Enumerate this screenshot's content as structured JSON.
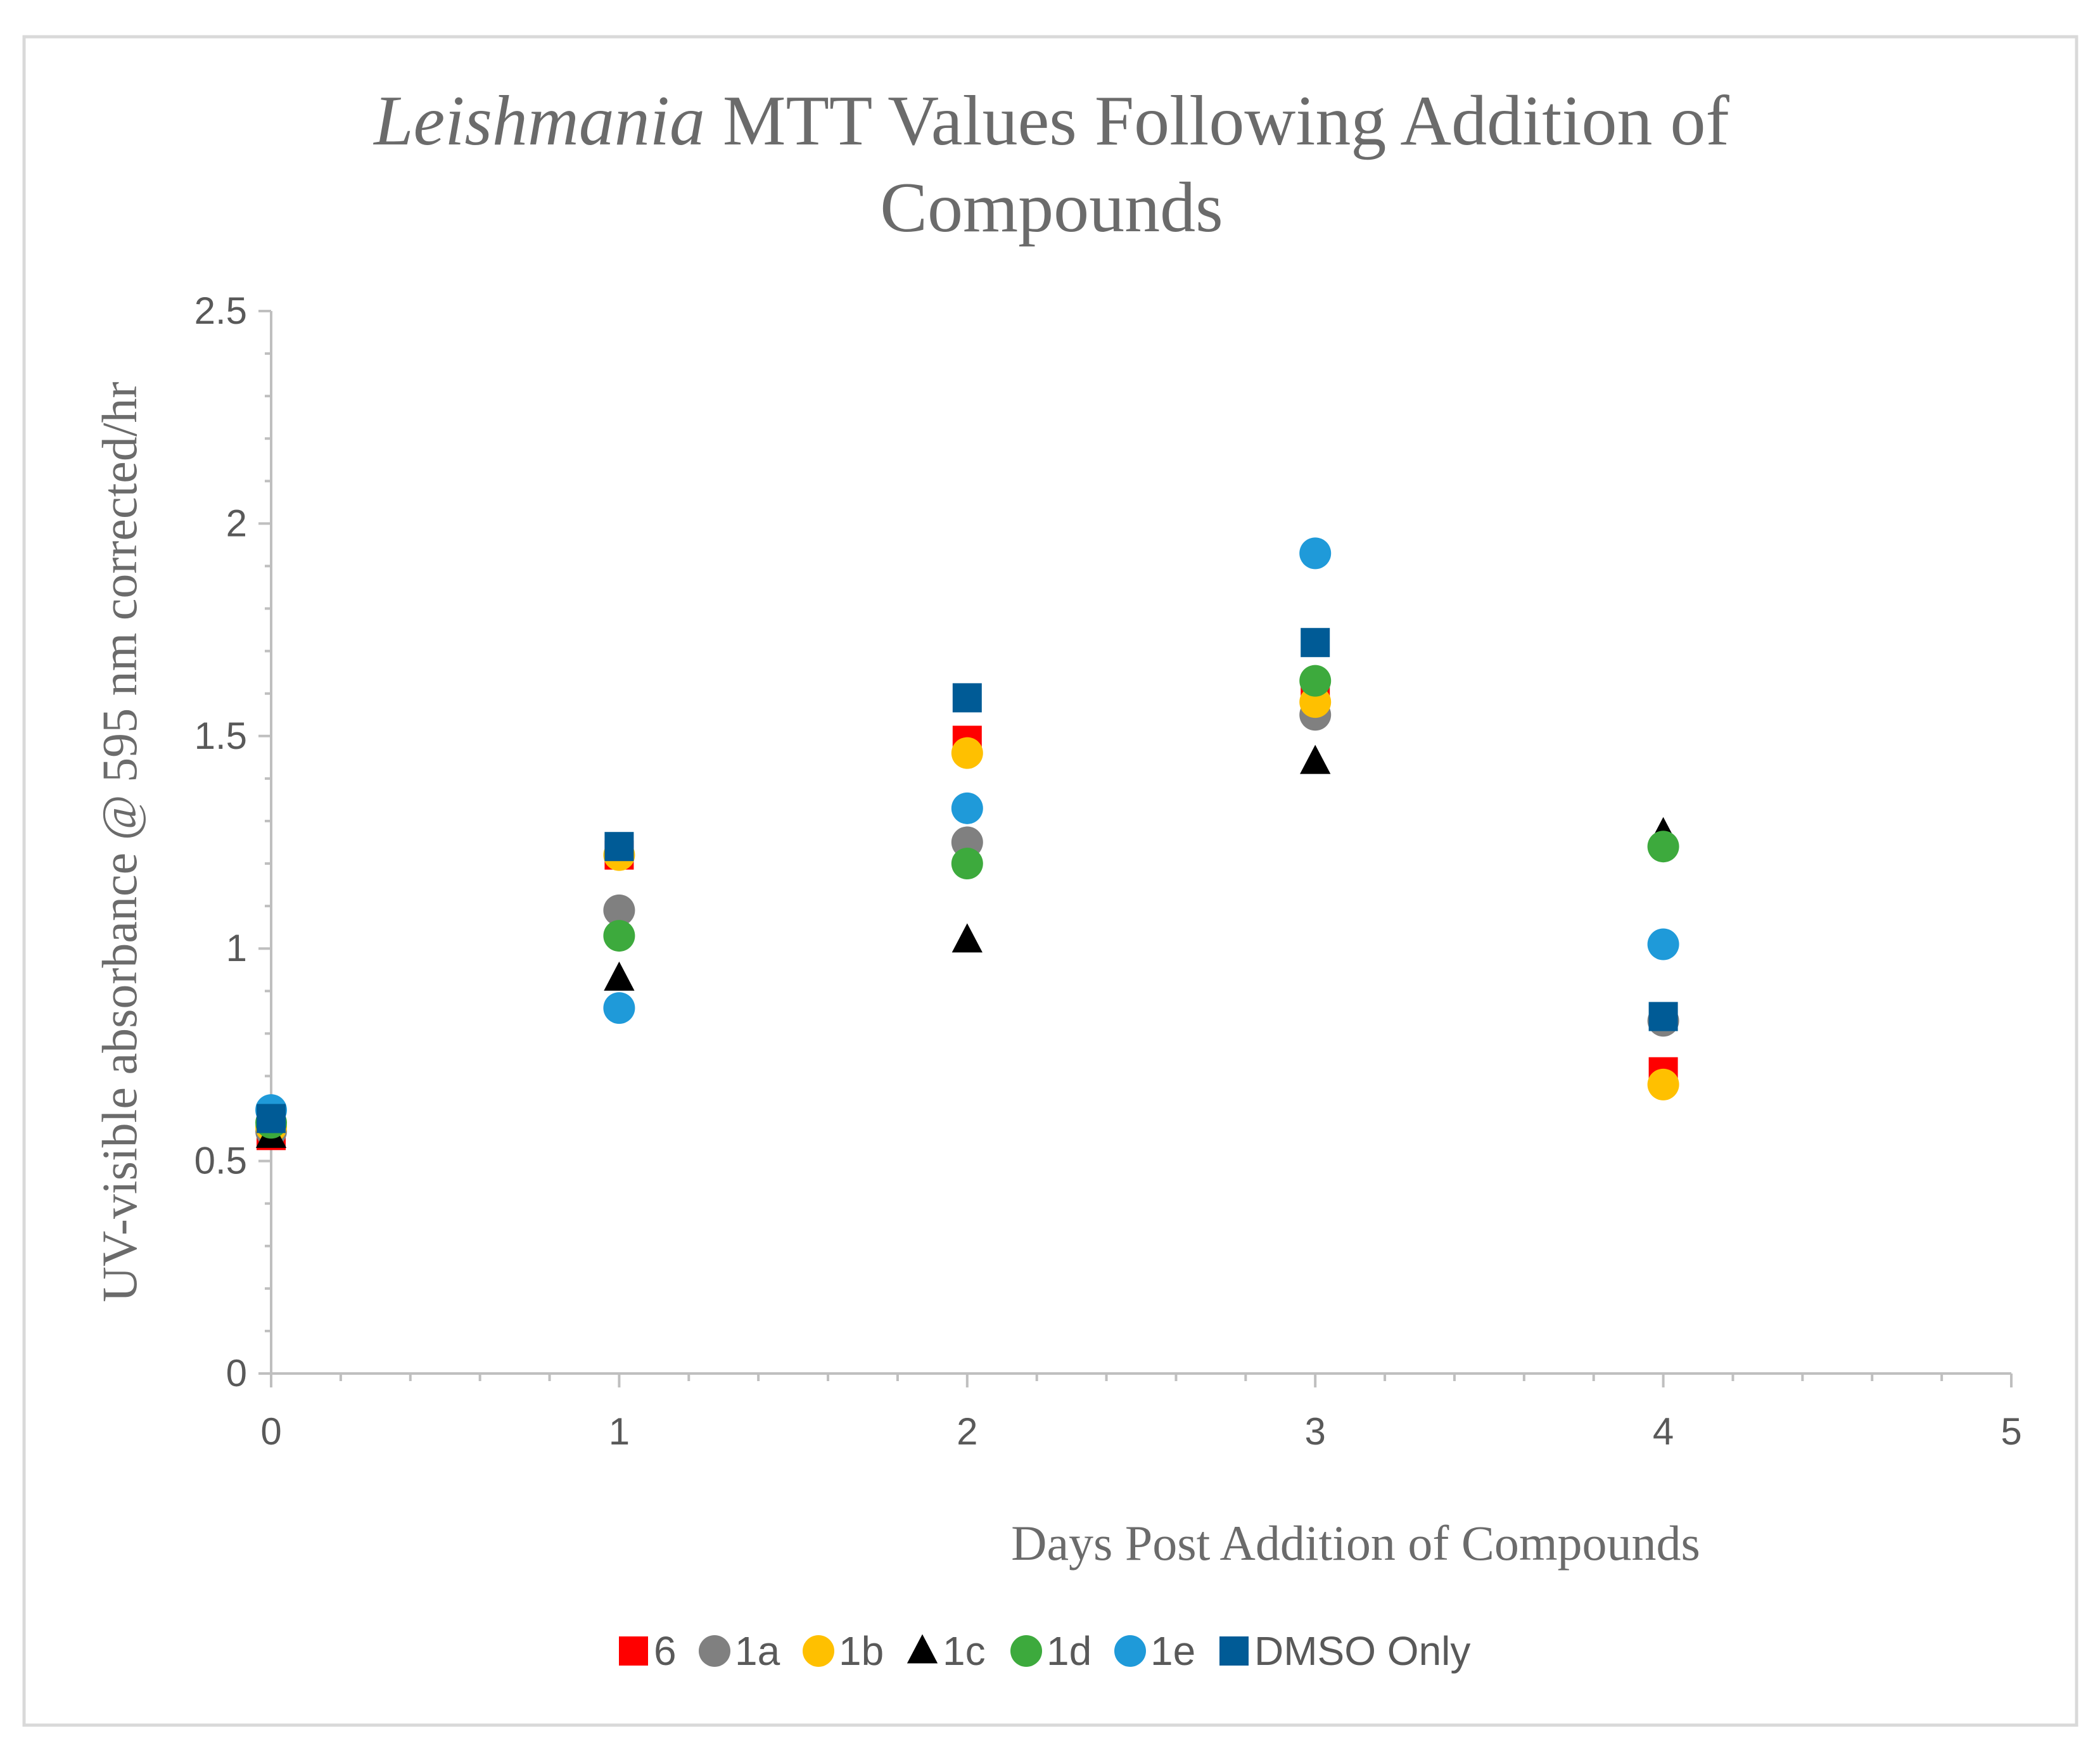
{
  "chart_data": {
    "type": "scatter",
    "title": {
      "italic_part": "Leishmania",
      "rest_line1": " MTT Values Following Addition of",
      "line2": "Compounds"
    },
    "xlabel": "Days Post Addition of Compounds",
    "ylabel": "UV-visible absorbance @ 595 nm corrected/hr",
    "xlim": [
      0,
      5
    ],
    "ylim": [
      0,
      2.5
    ],
    "xticks": [
      "0",
      "1",
      "2",
      "3",
      "4",
      "5"
    ],
    "yticks": [
      "0",
      "0.5",
      "1",
      "1.5",
      "2",
      "2.5"
    ],
    "x": [
      0,
      1,
      2,
      3,
      4
    ],
    "grid": false,
    "legend_position": "bottom",
    "series": [
      {
        "name": "6",
        "marker": "square",
        "color": "#ff0000",
        "values": [
          0.56,
          1.22,
          1.49,
          1.61,
          0.71
        ]
      },
      {
        "name": "1a",
        "marker": "circle",
        "color": "#808080",
        "values": [
          0.57,
          1.09,
          1.25,
          1.55,
          0.83
        ]
      },
      {
        "name": "1b",
        "marker": "circle",
        "color": "#ffc000",
        "values": [
          0.58,
          1.22,
          1.46,
          1.58,
          0.68
        ]
      },
      {
        "name": "1c",
        "marker": "triangle",
        "color": "#000000",
        "values": [
          0.56,
          0.93,
          1.02,
          1.44,
          1.27
        ]
      },
      {
        "name": "1d",
        "marker": "circle",
        "color": "#3daa3d",
        "values": [
          0.59,
          1.03,
          1.2,
          1.63,
          1.24
        ]
      },
      {
        "name": "1e",
        "marker": "circle",
        "color": "#1f9ad9",
        "values": [
          0.62,
          0.86,
          1.33,
          1.93,
          1.01
        ]
      },
      {
        "name": "DMSO Only",
        "marker": "square",
        "color": "#005b96",
        "values": [
          0.6,
          1.24,
          1.59,
          1.72,
          0.84
        ]
      }
    ]
  }
}
